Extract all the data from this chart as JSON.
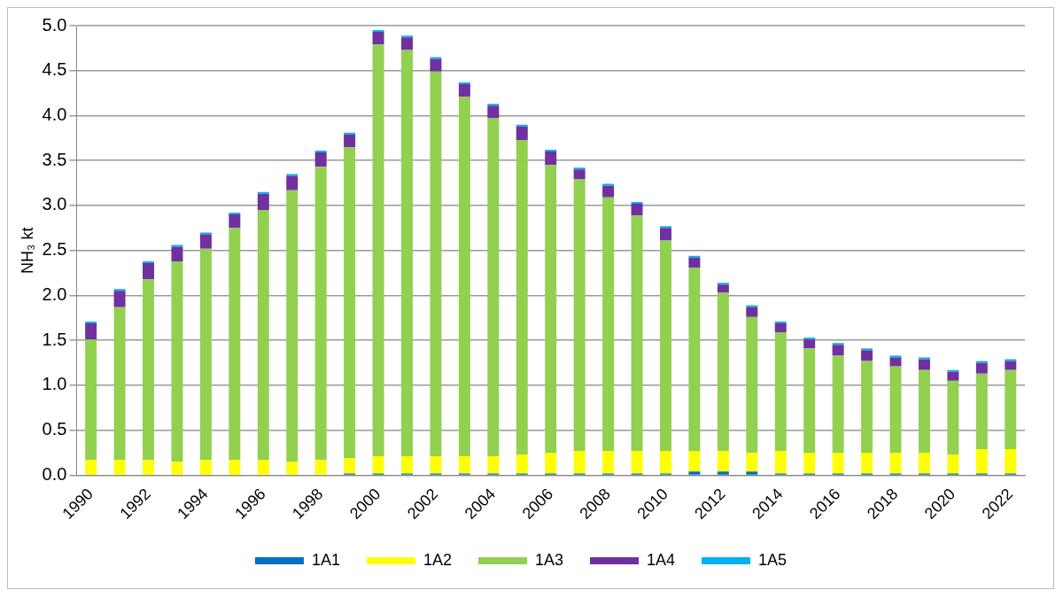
{
  "chart_data": {
    "type": "bar",
    "stacked": true,
    "ylabel": "NH₃ kt",
    "categories": [
      "1990",
      null,
      "1992",
      null,
      "1994",
      null,
      "1996",
      null,
      "1998",
      null,
      "2000",
      null,
      "2002",
      null,
      "2004",
      null,
      "2006",
      null,
      "2008",
      null,
      "2010",
      null,
      "2012",
      null,
      "2014",
      null,
      "2016",
      null,
      "2018",
      null,
      "2020",
      null,
      "2022"
    ],
    "series": [
      {
        "name": "1A1",
        "color": "#0070c0",
        "values": [
          0,
          0,
          0,
          0,
          0,
          0,
          0,
          0,
          0,
          0.02,
          0.02,
          0.02,
          0.02,
          0.02,
          0.02,
          0.02,
          0.02,
          0.02,
          0.02,
          0.02,
          0.02,
          0.04,
          0.04,
          0.04,
          0.02,
          0.02,
          0.02,
          0.02,
          0.02,
          0.02,
          0.02,
          0.02,
          0.02
        ]
      },
      {
        "name": "1A2",
        "color": "#ffff00",
        "values": [
          0.17,
          0.17,
          0.17,
          0.15,
          0.17,
          0.17,
          0.17,
          0.15,
          0.17,
          0.17,
          0.19,
          0.19,
          0.19,
          0.19,
          0.19,
          0.21,
          0.23,
          0.25,
          0.25,
          0.25,
          0.25,
          0.23,
          0.23,
          0.21,
          0.25,
          0.23,
          0.23,
          0.23,
          0.23,
          0.23,
          0.21,
          0.27,
          0.27
        ]
      },
      {
        "name": "1A3",
        "color": "#92d050",
        "values": [
          1.34,
          1.7,
          2.01,
          2.23,
          2.35,
          2.58,
          2.78,
          3.02,
          3.26,
          3.46,
          4.58,
          4.52,
          4.28,
          4.0,
          3.76,
          3.5,
          3.2,
          3.02,
          2.82,
          2.62,
          2.34,
          2.04,
          1.76,
          1.51,
          1.32,
          1.16,
          1.08,
          1.02,
          0.96,
          0.92,
          0.82,
          0.84,
          0.88
        ]
      },
      {
        "name": "1A4",
        "color": "#7030a0",
        "values": [
          0.18,
          0.18,
          0.18,
          0.16,
          0.16,
          0.15,
          0.18,
          0.16,
          0.16,
          0.14,
          0.14,
          0.14,
          0.14,
          0.14,
          0.14,
          0.15,
          0.15,
          0.11,
          0.13,
          0.13,
          0.14,
          0.11,
          0.09,
          0.11,
          0.1,
          0.1,
          0.12,
          0.12,
          0.1,
          0.12,
          0.1,
          0.12,
          0.1
        ]
      },
      {
        "name": "1A5",
        "color": "#00b0f0",
        "values": [
          0.02,
          0.02,
          0.02,
          0.02,
          0.02,
          0.02,
          0.02,
          0.02,
          0.02,
          0.02,
          0.02,
          0.02,
          0.02,
          0.02,
          0.02,
          0.02,
          0.02,
          0.02,
          0.02,
          0.02,
          0.02,
          0.02,
          0.02,
          0.02,
          0.02,
          0.02,
          0.02,
          0.02,
          0.02,
          0.02,
          0.02,
          0.02,
          0.02
        ]
      }
    ],
    "ylim": [
      0,
      5
    ],
    "yticks": [
      {
        "value": 0,
        "label": "0.0"
      },
      0.5,
      {
        "value": 1,
        "label": "1.0"
      },
      1.5,
      {
        "value": 2,
        "label": "2.0"
      },
      2.5,
      {
        "value": 3,
        "label": "3.0"
      },
      3.5,
      {
        "value": 4,
        "label": "4.0"
      },
      4.5,
      {
        "value": 5,
        "label": "5.0"
      }
    ],
    "grid": "y",
    "legend": "bottom"
  }
}
